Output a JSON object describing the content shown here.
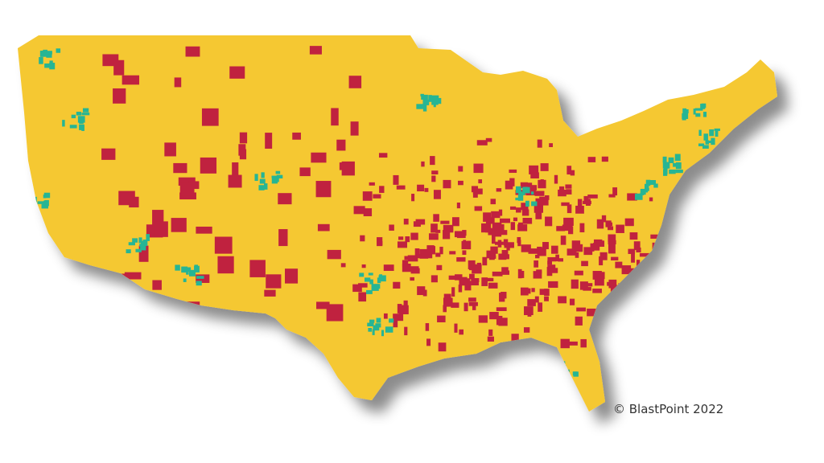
{
  "credit": "© BlastPoint 2022"
}
